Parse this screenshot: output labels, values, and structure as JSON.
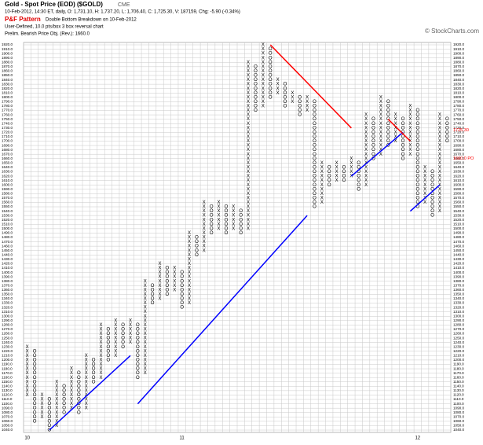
{
  "chart_data": {
    "type": "pnf",
    "title": "Gold - Spot Price (EOD) ($GOLD)",
    "exchange": "CME",
    "subtitle": "10-Feb-2012, 14:30 ET, daily, O: 1,731.10, H: 1,737.20, L: 1,706.40, C: 1,725.30, V: 187159, Chg: -5.90 (-0.34%)",
    "pattern_label": "P&F Pattern",
    "pattern": "Double Bottom Breakdown on 10-Feb-2012",
    "settings": "User-Defined, 10.0 pts/box 3 box reversal chart",
    "objective": "Prelim. Bearish Price Obj. (Rev.): 1660.0",
    "credit": "© StockCharts.com",
    "grid": true,
    "x_color": "#000000",
    "o_color": "#000000",
    "ylim": [
      1040,
      1920
    ],
    "yticks": [
      {
        "value": 1040,
        "label": "1040.0"
      },
      {
        "value": 1050,
        "label": "1050.0"
      },
      {
        "value": 1060,
        "label": "1060.0"
      },
      {
        "value": 1070,
        "label": "1070.0"
      },
      {
        "value": 1080,
        "label": "1080.0"
      },
      {
        "value": 1090,
        "label": "1090.0"
      },
      {
        "value": 1100,
        "label": "1100.0"
      },
      {
        "value": 1110,
        "label": "1110.0"
      },
      {
        "value": 1120,
        "label": "1120.0"
      },
      {
        "value": 1130,
        "label": "1130.0"
      },
      {
        "value": 1140,
        "label": "1140.0"
      },
      {
        "value": 1150,
        "label": "1150.0"
      },
      {
        "value": 1160,
        "label": "1160.0"
      },
      {
        "value": 1170,
        "label": "1170.0"
      },
      {
        "value": 1180,
        "label": "1180.0"
      },
      {
        "value": 1190,
        "label": "1190.0"
      },
      {
        "value": 1200,
        "label": "1200.0"
      },
      {
        "value": 1210,
        "label": "1210.0"
      },
      {
        "value": 1220,
        "label": "1220.0"
      },
      {
        "value": 1230,
        "label": "1230.0"
      },
      {
        "value": 1240,
        "label": "1240.0"
      },
      {
        "value": 1250,
        "label": "1250.0"
      },
      {
        "value": 1260,
        "label": "1260.0"
      },
      {
        "value": 1270,
        "label": "1270.0"
      },
      {
        "value": 1280,
        "label": "1280.0"
      },
      {
        "value": 1290,
        "label": "1290.0"
      },
      {
        "value": 1300,
        "label": "1300.0"
      },
      {
        "value": 1310,
        "label": "1310.0"
      },
      {
        "value": 1320,
        "label": "1320.0"
      },
      {
        "value": 1330,
        "label": "1330.0"
      },
      {
        "value": 1340,
        "label": "1340.0"
      },
      {
        "value": 1350,
        "label": "1350.0"
      },
      {
        "value": 1360,
        "label": "1360.0"
      },
      {
        "value": 1370,
        "label": "1370.0"
      },
      {
        "value": 1380,
        "label": "1380.0"
      },
      {
        "value": 1390,
        "label": "1390.0"
      },
      {
        "value": 1400,
        "label": "1400.0"
      },
      {
        "value": 1410,
        "label": "1410.0"
      },
      {
        "value": 1420,
        "label": "1420.0"
      },
      {
        "value": 1430,
        "label": "1430.0"
      },
      {
        "value": 1440,
        "label": "1440.0"
      },
      {
        "value": 1450,
        "label": "1450.0"
      },
      {
        "value": 1460,
        "label": "1460.0"
      },
      {
        "value": 1470,
        "label": "1470.0"
      },
      {
        "value": 1480,
        "label": "1480.0"
      },
      {
        "value": 1490,
        "label": "1490.0"
      },
      {
        "value": 1500,
        "label": "1500.0"
      },
      {
        "value": 1510,
        "label": "1510.0"
      },
      {
        "value": 1520,
        "label": "1520.0"
      },
      {
        "value": 1530,
        "label": "1530.0"
      },
      {
        "value": 1540,
        "label": "1540.0"
      },
      {
        "value": 1550,
        "label": "1550.0"
      },
      {
        "value": 1560,
        "label": "1560.0"
      },
      {
        "value": 1570,
        "label": "1570.0"
      },
      {
        "value": 1580,
        "label": "1580.0"
      },
      {
        "value": 1590,
        "label": "1590.0"
      },
      {
        "value": 1600,
        "label": "1600.0"
      },
      {
        "value": 1610,
        "label": "1610.0"
      },
      {
        "value": 1620,
        "label": "1620.0"
      },
      {
        "value": 1630,
        "label": "1630.0"
      },
      {
        "value": 1640,
        "label": "1640.0"
      },
      {
        "value": 1650,
        "label": "1650.0"
      },
      {
        "value": 1660,
        "label": "1660.0"
      },
      {
        "value": 1670,
        "label": "1670.0"
      },
      {
        "value": 1680,
        "label": "1680.0"
      },
      {
        "value": 1690,
        "label": "1690.0"
      },
      {
        "value": 1700,
        "label": "1700.0"
      },
      {
        "value": 1710,
        "label": "1710.0"
      },
      {
        "value": 1720,
        "label": "1720.0"
      },
      {
        "value": 1730,
        "label": "1730.0"
      },
      {
        "value": 1740,
        "label": "1740.0"
      },
      {
        "value": 1750,
        "label": "1750.0"
      },
      {
        "value": 1760,
        "label": "1760.0"
      },
      {
        "value": 1770,
        "label": "1770.0"
      },
      {
        "value": 1780,
        "label": "1780.0"
      },
      {
        "value": 1790,
        "label": "1790.0"
      },
      {
        "value": 1800,
        "label": "1800.0"
      },
      {
        "value": 1810,
        "label": "1810.0"
      },
      {
        "value": 1820,
        "label": "1820.0"
      },
      {
        "value": 1830,
        "label": "1830.0"
      },
      {
        "value": 1840,
        "label": "1840.0"
      },
      {
        "value": 1850,
        "label": "1850.0"
      },
      {
        "value": 1860,
        "label": "1860.0"
      },
      {
        "value": 1870,
        "label": "1870.0"
      },
      {
        "value": 1880,
        "label": "1880.0"
      },
      {
        "value": 1890,
        "label": "1890.0"
      },
      {
        "value": 1900,
        "label": "1900.0"
      },
      {
        "value": 1910,
        "label": "1910.0"
      },
      {
        "value": 1920,
        "label": "1920.0"
      }
    ],
    "categories": [
      "10",
      null,
      null,
      null,
      null,
      null,
      null,
      null,
      null,
      null,
      null,
      null,
      null,
      null,
      null,
      null,
      null,
      null,
      null,
      null,
      null,
      "11",
      null,
      null,
      null,
      null,
      null,
      null,
      null,
      null,
      null,
      null,
      null,
      null,
      null,
      null,
      null,
      null,
      null,
      null,
      null,
      null,
      null,
      null,
      null,
      null,
      null,
      null,
      null,
      null,
      null,
      null,
      null,
      "12",
      null,
      null,
      null,
      null
    ],
    "columns": [
      {
        "type": "X",
        "from": 1120,
        "to": 1230
      },
      {
        "type": "O",
        "from": 1060,
        "to": 1220
      },
      {
        "type": "X",
        "from": 1070,
        "to": 1120
      },
      {
        "type": "O",
        "from": 1040,
        "to": 1110
      },
      {
        "type": "X",
        "from": 1050,
        "to": 1150
      },
      {
        "type": "O",
        "from": 1080,
        "to": 1140
      },
      {
        "type": "X",
        "from": 1090,
        "to": 1180
      },
      {
        "type": "O",
        "from": 1080,
        "to": 1170
      },
      {
        "type": "X",
        "from": 1090,
        "to": 1210
      },
      {
        "type": "O",
        "from": 1150,
        "to": 1200
      },
      {
        "type": "X",
        "from": 1160,
        "to": 1280
      },
      {
        "type": "O",
        "from": 1200,
        "to": 1270
      },
      {
        "type": "X",
        "from": 1210,
        "to": 1290
      },
      {
        "type": "O",
        "from": 1230,
        "to": 1280
      },
      {
        "type": "X",
        "from": 1240,
        "to": 1290
      },
      {
        "type": "O",
        "from": 1160,
        "to": 1280
      },
      {
        "type": "X",
        "from": 1170,
        "to": 1380
      },
      {
        "type": "O",
        "from": 1330,
        "to": 1370
      },
      {
        "type": "X",
        "from": 1340,
        "to": 1420
      },
      {
        "type": "O",
        "from": 1350,
        "to": 1410
      },
      {
        "type": "X",
        "from": 1360,
        "to": 1410
      },
      {
        "type": "O",
        "from": 1320,
        "to": 1400
      },
      {
        "type": "X",
        "from": 1330,
        "to": 1490
      },
      {
        "type": "O",
        "from": 1440,
        "to": 1480
      },
      {
        "type": "X",
        "from": 1450,
        "to": 1560
      },
      {
        "type": "O",
        "from": 1490,
        "to": 1550
      },
      {
        "type": "X",
        "from": 1500,
        "to": 1560
      },
      {
        "type": "O",
        "from": 1490,
        "to": 1550
      },
      {
        "type": "X",
        "from": 1500,
        "to": 1550
      },
      {
        "type": "O",
        "from": 1490,
        "to": 1540
      },
      {
        "type": "X",
        "from": 1500,
        "to": 1880
      },
      {
        "type": "O",
        "from": 1770,
        "to": 1870
      },
      {
        "type": "X",
        "from": 1780,
        "to": 1920
      },
      {
        "type": "O",
        "from": 1800,
        "to": 1910
      },
      {
        "type": "X",
        "from": 1810,
        "to": 1840
      },
      {
        "type": "O",
        "from": 1780,
        "to": 1830
      },
      {
        "type": "X",
        "from": 1790,
        "to": 1810
      },
      {
        "type": "O",
        "from": 1760,
        "to": 1800
      },
      {
        "type": "X",
        "from": 1770,
        "to": 1800
      },
      {
        "type": "O",
        "from": 1550,
        "to": 1790
      },
      {
        "type": "X",
        "from": 1560,
        "to": 1650
      },
      {
        "type": "O",
        "from": 1600,
        "to": 1640
      },
      {
        "type": "X",
        "from": 1610,
        "to": 1650
      },
      {
        "type": "O",
        "from": 1610,
        "to": 1640
      },
      {
        "type": "X",
        "from": 1620,
        "to": 1660
      },
      {
        "type": "O",
        "from": 1590,
        "to": 1650
      },
      {
        "type": "X",
        "from": 1600,
        "to": 1760
      },
      {
        "type": "O",
        "from": 1660,
        "to": 1750
      },
      {
        "type": "X",
        "from": 1670,
        "to": 1800
      },
      {
        "type": "O",
        "from": 1690,
        "to": 1790
      },
      {
        "type": "X",
        "from": 1700,
        "to": 1760
      },
      {
        "type": "O",
        "from": 1660,
        "to": 1750
      },
      {
        "type": "X",
        "from": 1670,
        "to": 1780
      },
      {
        "type": "O",
        "from": 1550,
        "to": 1770
      },
      {
        "type": "X",
        "from": 1560,
        "to": 1640
      },
      {
        "type": "O",
        "from": 1530,
        "to": 1630
      },
      {
        "type": "X",
        "from": 1540,
        "to": 1760
      },
      {
        "type": "O",
        "from": 1700,
        "to": 1750
      }
    ],
    "trendlines": [
      {
        "color": "#0000ff",
        "from": [
          3,
          1040
        ],
        "to": [
          14,
          1210
        ]
      },
      {
        "color": "#0000ff",
        "from": [
          15,
          1100
        ],
        "to": [
          38,
          1530
        ]
      },
      {
        "color": "#0000ff",
        "from": [
          44,
          1620
        ],
        "to": [
          51,
          1720
        ]
      },
      {
        "color": "#0000ff",
        "from": [
          52,
          1540
        ],
        "to": [
          56,
          1600
        ]
      },
      {
        "color": "#ff0000",
        "from": [
          33,
          1920
        ],
        "to": [
          44,
          1730
        ]
      },
      {
        "color": "#ff0000",
        "from": [
          49,
          1750
        ],
        "to": [
          52,
          1700
        ]
      }
    ],
    "markers": [
      {
        "value": 1725.3,
        "label": "1725.30",
        "color": "#ff0000"
      },
      {
        "value": 1660,
        "label": "1660.0 PO",
        "color": "#ff0000"
      }
    ]
  }
}
